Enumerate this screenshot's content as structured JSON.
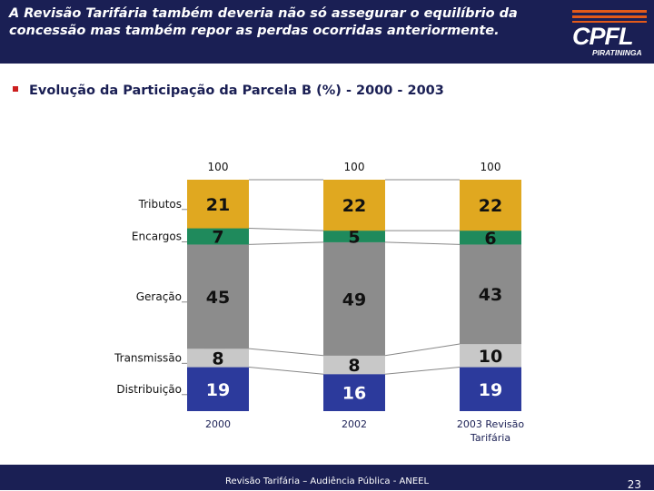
{
  "header": {
    "title": "A Revisão Tarifária também deveria não só assegurar o equilíbrio da concessão mas também repor as perdas ocorridas anteriormente.",
    "logo_text": "CPFL",
    "logo_subtext": "PIRATININGA"
  },
  "section_title": "Evolução da Participação da Parcela B (%) - 2000 - 2003",
  "footer": {
    "text": "Revisão Tarifária – Audiência Pública - ANEEL",
    "page_number": "23"
  },
  "chart_data": {
    "type": "bar",
    "stacked": true,
    "categories": [
      "2000",
      "2002",
      "2003 Revisão Tarifária"
    ],
    "totals": [
      100,
      100,
      100
    ],
    "series": [
      {
        "name": "Distribuição",
        "values": [
          19,
          16,
          19
        ],
        "color": "#2c3a9c"
      },
      {
        "name": "Transmissão",
        "values": [
          8,
          8,
          10
        ],
        "color": "#c8c8c8"
      },
      {
        "name": "Geração",
        "values": [
          45,
          49,
          43
        ],
        "color": "#8c8c8c"
      },
      {
        "name": "Encargos",
        "values": [
          7,
          5,
          6
        ],
        "color": "#1f8a5c"
      },
      {
        "name": "Tributos",
        "values": [
          21,
          22,
          22
        ],
        "color": "#e0a820"
      }
    ],
    "ylim": [
      0,
      100
    ],
    "grid": false,
    "legend_position": "left"
  }
}
